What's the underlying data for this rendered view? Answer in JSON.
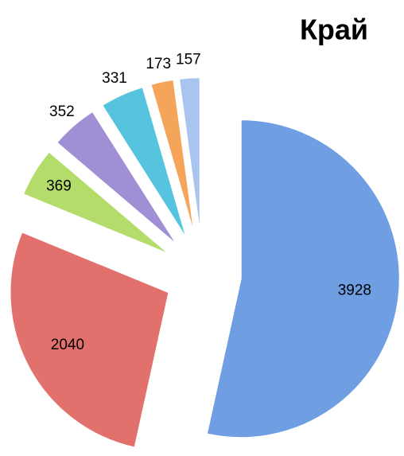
{
  "chart_data": {
    "type": "pie",
    "title": "Край",
    "values": [
      3928,
      2040,
      369,
      352,
      331,
      173,
      157
    ],
    "colors": [
      "#6f9fe2",
      "#e2706d",
      "#b4dc6a",
      "#a08fd4",
      "#56c4de",
      "#f4a55a",
      "#a9c5ef"
    ]
  }
}
